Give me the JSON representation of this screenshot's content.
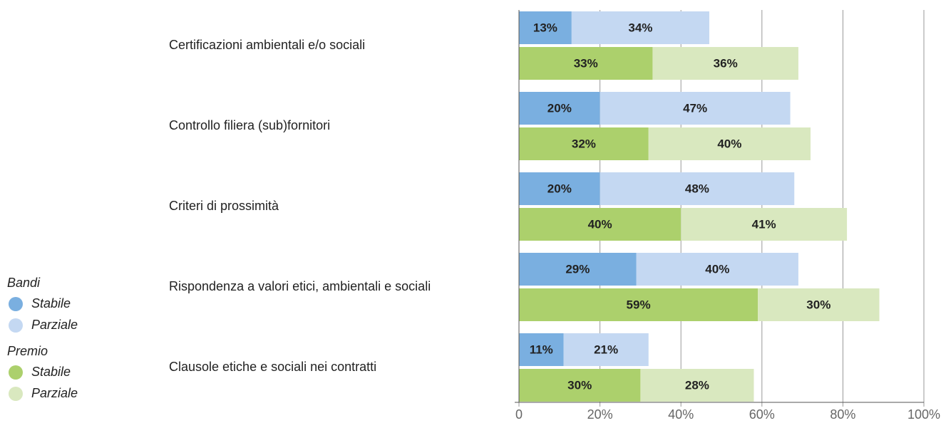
{
  "chart_data": {
    "type": "stacked-bar-horizontal",
    "categories": [
      "Certificazioni ambientali e/o sociali",
      "Controllo filiera (sub)fornitori",
      "Criteri di prossimità",
      "Rispondenza a valori etici, ambientali e sociali",
      "Clausole etiche e sociali nei contratti"
    ],
    "stacks": [
      {
        "name": "Bandi",
        "series": [
          {
            "name": "Stabile",
            "color": "#7aafe0",
            "values": [
              13,
              20,
              20,
              29,
              11
            ],
            "value_labels": [
              "13%",
              "20%",
              "20%",
              "29%",
              "11%"
            ]
          },
          {
            "name": "Parziale",
            "color": "#c4d8f2",
            "values": [
              34,
              47,
              48,
              40,
              21
            ],
            "value_labels": [
              "34%",
              "47%",
              "48%",
              "40%",
              "21%"
            ]
          }
        ]
      },
      {
        "name": "Premio",
        "series": [
          {
            "name": "Stabile",
            "color": "#acd06c",
            "values": [
              33,
              32,
              40,
              59,
              30
            ],
            "value_labels": [
              "33%",
              "32%",
              "40%",
              "59%",
              "30%"
            ]
          },
          {
            "name": "Parziale",
            "color": "#d9e8bf",
            "values": [
              36,
              40,
              41,
              30,
              28
            ],
            "value_labels": [
              "36%",
              "40%",
              "41%",
              "30%",
              "28%"
            ]
          }
        ]
      }
    ],
    "xlim": [
      0,
      100
    ],
    "xticks": [
      0,
      {
        "value": 20,
        "label": "20%"
      },
      {
        "value": 40,
        "label": "40%"
      },
      {
        "value": 60,
        "label": "60%"
      },
      {
        "value": 80,
        "label": "80%"
      },
      {
        "value": 100,
        "label": "100%"
      }
    ],
    "grid": true
  }
}
